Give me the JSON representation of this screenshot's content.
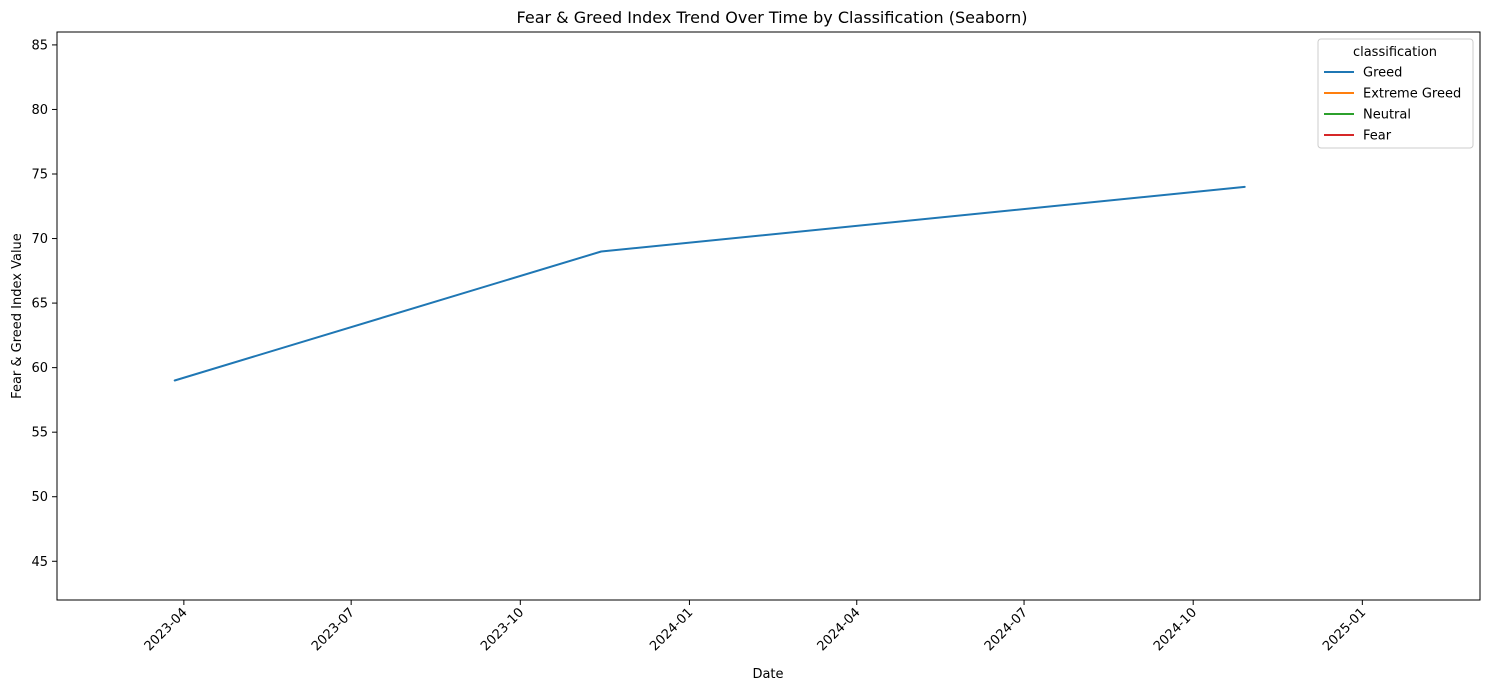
{
  "chart_data": {
    "type": "line",
    "title": "Fear & Greed Index Trend Over Time by Classification (Seaborn)",
    "xlabel": "Date",
    "ylabel": "Fear & Greed Index Value",
    "x_axis_type": "date",
    "xlim": [
      "2023-01-22",
      "2025-03-06"
    ],
    "ylim": [
      42,
      86
    ],
    "x_ticks": [
      "2023-04",
      "2023-07",
      "2023-10",
      "2024-01",
      "2024-04",
      "2024-07",
      "2024-10",
      "2025-01"
    ],
    "y_ticks": [
      45,
      50,
      55,
      60,
      65,
      70,
      75,
      80,
      85
    ],
    "grid": false,
    "legend": {
      "title": "classification",
      "placement": "top-right",
      "entries": [
        {
          "name": "Greed",
          "color": "#1f77b4"
        },
        {
          "name": "Extreme Greed",
          "color": "#ff7f0e"
        },
        {
          "name": "Neutral",
          "color": "#2ca02c"
        },
        {
          "name": "Fear",
          "color": "#d62728"
        }
      ]
    },
    "series": [
      {
        "name": "Greed",
        "color": "#1f77b4",
        "points": [
          {
            "x": "2023-03-27",
            "y": 59
          },
          {
            "x": "2023-11-14",
            "y": 69
          },
          {
            "x": "2024-10-29",
            "y": 74
          }
        ]
      },
      {
        "name": "Extreme Greed",
        "color": "#ff7f0e",
        "points": []
      },
      {
        "name": "Neutral",
        "color": "#2ca02c",
        "points": []
      },
      {
        "name": "Fear",
        "color": "#d62728",
        "points": []
      }
    ]
  }
}
